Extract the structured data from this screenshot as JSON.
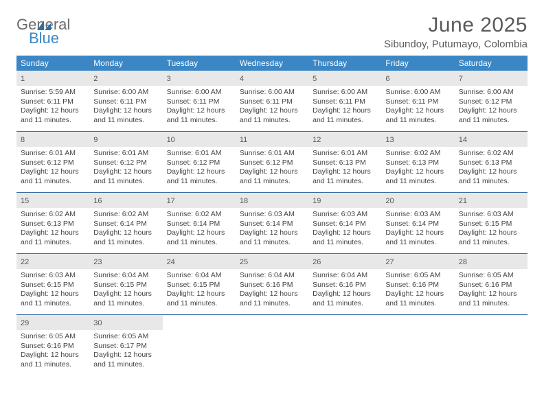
{
  "logo": {
    "word1": "General",
    "word2": "Blue"
  },
  "title": "June 2025",
  "location": "Sibundoy, Putumayo, Colombia",
  "colors": {
    "header_bar": "#3b86c4",
    "daynum_bg": "#e8e8e8",
    "week_border": "#3b6ea0",
    "title_color": "#5a5a5a",
    "text_color": "#444444",
    "logo_gray": "#6b6b6b",
    "logo_blue": "#3b86c4"
  },
  "days_of_week": [
    "Sunday",
    "Monday",
    "Tuesday",
    "Wednesday",
    "Thursday",
    "Friday",
    "Saturday"
  ],
  "weeks": [
    [
      {
        "n": "1",
        "sunrise": "Sunrise: 5:59 AM",
        "sunset": "Sunset: 6:11 PM",
        "daylight1": "Daylight: 12 hours",
        "daylight2": "and 11 minutes."
      },
      {
        "n": "2",
        "sunrise": "Sunrise: 6:00 AM",
        "sunset": "Sunset: 6:11 PM",
        "daylight1": "Daylight: 12 hours",
        "daylight2": "and 11 minutes."
      },
      {
        "n": "3",
        "sunrise": "Sunrise: 6:00 AM",
        "sunset": "Sunset: 6:11 PM",
        "daylight1": "Daylight: 12 hours",
        "daylight2": "and 11 minutes."
      },
      {
        "n": "4",
        "sunrise": "Sunrise: 6:00 AM",
        "sunset": "Sunset: 6:11 PM",
        "daylight1": "Daylight: 12 hours",
        "daylight2": "and 11 minutes."
      },
      {
        "n": "5",
        "sunrise": "Sunrise: 6:00 AM",
        "sunset": "Sunset: 6:11 PM",
        "daylight1": "Daylight: 12 hours",
        "daylight2": "and 11 minutes."
      },
      {
        "n": "6",
        "sunrise": "Sunrise: 6:00 AM",
        "sunset": "Sunset: 6:11 PM",
        "daylight1": "Daylight: 12 hours",
        "daylight2": "and 11 minutes."
      },
      {
        "n": "7",
        "sunrise": "Sunrise: 6:00 AM",
        "sunset": "Sunset: 6:12 PM",
        "daylight1": "Daylight: 12 hours",
        "daylight2": "and 11 minutes."
      }
    ],
    [
      {
        "n": "8",
        "sunrise": "Sunrise: 6:01 AM",
        "sunset": "Sunset: 6:12 PM",
        "daylight1": "Daylight: 12 hours",
        "daylight2": "and 11 minutes."
      },
      {
        "n": "9",
        "sunrise": "Sunrise: 6:01 AM",
        "sunset": "Sunset: 6:12 PM",
        "daylight1": "Daylight: 12 hours",
        "daylight2": "and 11 minutes."
      },
      {
        "n": "10",
        "sunrise": "Sunrise: 6:01 AM",
        "sunset": "Sunset: 6:12 PM",
        "daylight1": "Daylight: 12 hours",
        "daylight2": "and 11 minutes."
      },
      {
        "n": "11",
        "sunrise": "Sunrise: 6:01 AM",
        "sunset": "Sunset: 6:12 PM",
        "daylight1": "Daylight: 12 hours",
        "daylight2": "and 11 minutes."
      },
      {
        "n": "12",
        "sunrise": "Sunrise: 6:01 AM",
        "sunset": "Sunset: 6:13 PM",
        "daylight1": "Daylight: 12 hours",
        "daylight2": "and 11 minutes."
      },
      {
        "n": "13",
        "sunrise": "Sunrise: 6:02 AM",
        "sunset": "Sunset: 6:13 PM",
        "daylight1": "Daylight: 12 hours",
        "daylight2": "and 11 minutes."
      },
      {
        "n": "14",
        "sunrise": "Sunrise: 6:02 AM",
        "sunset": "Sunset: 6:13 PM",
        "daylight1": "Daylight: 12 hours",
        "daylight2": "and 11 minutes."
      }
    ],
    [
      {
        "n": "15",
        "sunrise": "Sunrise: 6:02 AM",
        "sunset": "Sunset: 6:13 PM",
        "daylight1": "Daylight: 12 hours",
        "daylight2": "and 11 minutes."
      },
      {
        "n": "16",
        "sunrise": "Sunrise: 6:02 AM",
        "sunset": "Sunset: 6:14 PM",
        "daylight1": "Daylight: 12 hours",
        "daylight2": "and 11 minutes."
      },
      {
        "n": "17",
        "sunrise": "Sunrise: 6:02 AM",
        "sunset": "Sunset: 6:14 PM",
        "daylight1": "Daylight: 12 hours",
        "daylight2": "and 11 minutes."
      },
      {
        "n": "18",
        "sunrise": "Sunrise: 6:03 AM",
        "sunset": "Sunset: 6:14 PM",
        "daylight1": "Daylight: 12 hours",
        "daylight2": "and 11 minutes."
      },
      {
        "n": "19",
        "sunrise": "Sunrise: 6:03 AM",
        "sunset": "Sunset: 6:14 PM",
        "daylight1": "Daylight: 12 hours",
        "daylight2": "and 11 minutes."
      },
      {
        "n": "20",
        "sunrise": "Sunrise: 6:03 AM",
        "sunset": "Sunset: 6:14 PM",
        "daylight1": "Daylight: 12 hours",
        "daylight2": "and 11 minutes."
      },
      {
        "n": "21",
        "sunrise": "Sunrise: 6:03 AM",
        "sunset": "Sunset: 6:15 PM",
        "daylight1": "Daylight: 12 hours",
        "daylight2": "and 11 minutes."
      }
    ],
    [
      {
        "n": "22",
        "sunrise": "Sunrise: 6:03 AM",
        "sunset": "Sunset: 6:15 PM",
        "daylight1": "Daylight: 12 hours",
        "daylight2": "and 11 minutes."
      },
      {
        "n": "23",
        "sunrise": "Sunrise: 6:04 AM",
        "sunset": "Sunset: 6:15 PM",
        "daylight1": "Daylight: 12 hours",
        "daylight2": "and 11 minutes."
      },
      {
        "n": "24",
        "sunrise": "Sunrise: 6:04 AM",
        "sunset": "Sunset: 6:15 PM",
        "daylight1": "Daylight: 12 hours",
        "daylight2": "and 11 minutes."
      },
      {
        "n": "25",
        "sunrise": "Sunrise: 6:04 AM",
        "sunset": "Sunset: 6:16 PM",
        "daylight1": "Daylight: 12 hours",
        "daylight2": "and 11 minutes."
      },
      {
        "n": "26",
        "sunrise": "Sunrise: 6:04 AM",
        "sunset": "Sunset: 6:16 PM",
        "daylight1": "Daylight: 12 hours",
        "daylight2": "and 11 minutes."
      },
      {
        "n": "27",
        "sunrise": "Sunrise: 6:05 AM",
        "sunset": "Sunset: 6:16 PM",
        "daylight1": "Daylight: 12 hours",
        "daylight2": "and 11 minutes."
      },
      {
        "n": "28",
        "sunrise": "Sunrise: 6:05 AM",
        "sunset": "Sunset: 6:16 PM",
        "daylight1": "Daylight: 12 hours",
        "daylight2": "and 11 minutes."
      }
    ],
    [
      {
        "n": "29",
        "sunrise": "Sunrise: 6:05 AM",
        "sunset": "Sunset: 6:16 PM",
        "daylight1": "Daylight: 12 hours",
        "daylight2": "and 11 minutes."
      },
      {
        "n": "30",
        "sunrise": "Sunrise: 6:05 AM",
        "sunset": "Sunset: 6:17 PM",
        "daylight1": "Daylight: 12 hours",
        "daylight2": "and 11 minutes."
      },
      null,
      null,
      null,
      null,
      null
    ]
  ]
}
